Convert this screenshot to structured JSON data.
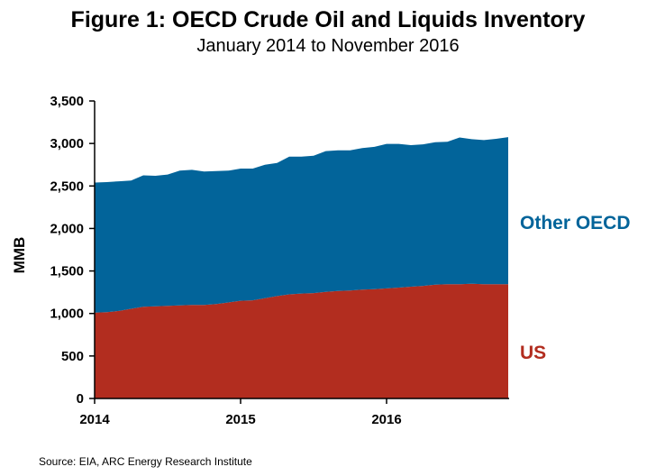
{
  "title": "Figure 1: OECD Crude Oil and Liquids Inventory",
  "subtitle": "January 2014 to November 2016",
  "source": "Source: EIA, ARC Energy Research Institute",
  "chart_data": {
    "type": "area",
    "stacked": true,
    "title": "Figure 1: OECD Crude Oil and Liquids Inventory",
    "subtitle": "January 2014 to November 2016",
    "xlabel": "",
    "ylabel": "MMB",
    "ylim": [
      0,
      3500
    ],
    "yticks": [
      0,
      500,
      1000,
      1500,
      2000,
      2500,
      3000,
      3500
    ],
    "ytick_labels": [
      "0",
      "500",
      "1,000",
      "1,500",
      "2,000",
      "2,500",
      "3,000",
      "3,500"
    ],
    "xticks": [
      2014,
      2015,
      2016
    ],
    "xtick_labels": [
      "2014",
      "2015",
      "2016"
    ],
    "x": [
      "2014-01",
      "2014-02",
      "2014-03",
      "2014-04",
      "2014-05",
      "2014-06",
      "2014-07",
      "2014-08",
      "2014-09",
      "2014-10",
      "2014-11",
      "2014-12",
      "2015-01",
      "2015-02",
      "2015-03",
      "2015-04",
      "2015-05",
      "2015-06",
      "2015-07",
      "2015-08",
      "2015-09",
      "2015-10",
      "2015-11",
      "2015-12",
      "2016-01",
      "2016-02",
      "2016-03",
      "2016-04",
      "2016-05",
      "2016-06",
      "2016-07",
      "2016-08",
      "2016-09",
      "2016-10",
      "2016-11"
    ],
    "grid": false,
    "legend": "direct labels on right",
    "series": [
      {
        "name": "US",
        "color": "#b22d1f",
        "values": [
          1010,
          1015,
          1030,
          1055,
          1080,
          1085,
          1090,
          1095,
          1100,
          1100,
          1110,
          1130,
          1150,
          1155,
          1180,
          1205,
          1225,
          1235,
          1240,
          1255,
          1265,
          1270,
          1280,
          1285,
          1295,
          1305,
          1315,
          1325,
          1340,
          1345,
          1345,
          1350,
          1345,
          1345,
          1345
        ]
      },
      {
        "name": "Other OECD",
        "color": "#02649a",
        "values": [
          1530,
          1530,
          1525,
          1510,
          1545,
          1535,
          1545,
          1585,
          1590,
          1570,
          1565,
          1550,
          1555,
          1550,
          1570,
          1565,
          1620,
          1610,
          1615,
          1655,
          1655,
          1650,
          1665,
          1675,
          1700,
          1690,
          1665,
          1665,
          1675,
          1675,
          1725,
          1700,
          1695,
          1710,
          1730
        ]
      }
    ]
  }
}
